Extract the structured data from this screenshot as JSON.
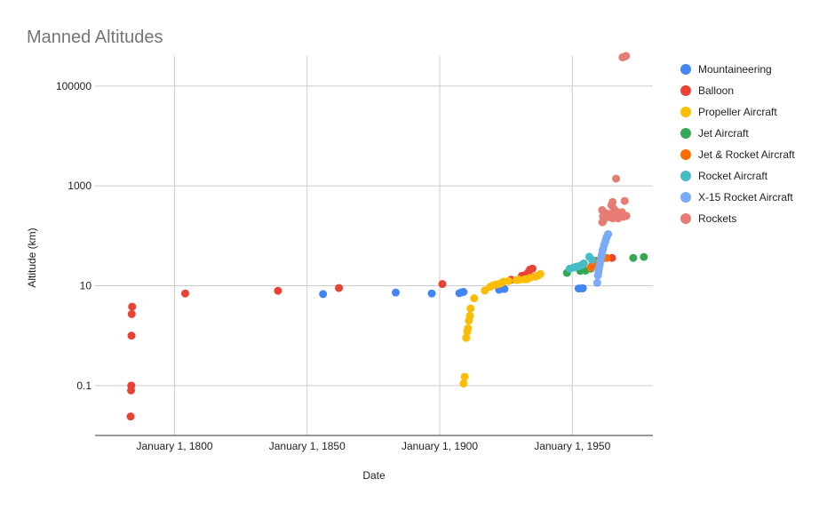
{
  "chart_data": {
    "type": "scatter",
    "title": "Manned Altitudes",
    "xlabel": "Date",
    "ylabel": "Altitude (km)",
    "x_axis": {
      "kind": "date",
      "range": [
        "1770-01-01",
        "1980-06-01"
      ],
      "ticks": [
        "1800-01-01",
        "1850-01-01",
        "1900-01-01",
        "1950-01-01"
      ],
      "tick_labels": [
        "January 1, 1800",
        "January 1, 1850",
        "January 1, 1900",
        "January 1, 1950"
      ]
    },
    "y_axis": {
      "scale": "log",
      "range": [
        0.01,
        400000
      ],
      "ticks": [
        0.1,
        10,
        1000,
        100000
      ],
      "tick_labels": [
        "0.1",
        "10",
        "1000",
        "100000"
      ]
    },
    "grid": true,
    "legend": "right",
    "series": [
      {
        "name": "Mountaineering",
        "color": "#4285F4",
        "points": [
          [
            "1856-01-01",
            6.8
          ],
          [
            "1883-06-01",
            7.3
          ],
          [
            "1897-01-01",
            7.0
          ],
          [
            "1907-06-01",
            7.1
          ],
          [
            "1908-06-01",
            7.4
          ],
          [
            "1909-01-01",
            7.5
          ],
          [
            "1922-06-01",
            8.3
          ],
          [
            "1924-06-01",
            8.6
          ],
          [
            "1952-06-01",
            8.8
          ],
          [
            "1953-05-29",
            8.85
          ],
          [
            "1954-01-01",
            8.9
          ]
        ]
      },
      {
        "name": "Balloon",
        "color": "#EA4335",
        "points": [
          [
            "1783-06-01",
            0.024
          ],
          [
            "1783-08-01",
            0.08
          ],
          [
            "1783-09-01",
            0.1
          ],
          [
            "1783-10-01",
            1.0
          ],
          [
            "1783-11-01",
            2.7
          ],
          [
            "1784-01-01",
            3.8
          ],
          [
            "1804-01-01",
            7.0
          ],
          [
            "1839-01-01",
            7.9
          ],
          [
            "1862-01-01",
            9.0
          ],
          [
            "1901-01-01",
            10.8
          ],
          [
            "1927-01-01",
            13.2
          ],
          [
            "1931-01-01",
            15.8
          ],
          [
            "1932-01-01",
            16.2
          ],
          [
            "1933-06-01",
            18.5
          ],
          [
            "1934-01-01",
            21.0
          ],
          [
            "1935-01-01",
            22.0
          ],
          [
            "1961-05-01",
            34.7
          ],
          [
            "1965-01-01",
            36.0
          ]
        ]
      },
      {
        "name": "Propeller Aircraft",
        "color": "#FBBC04",
        "points": [
          [
            "1909-01-01",
            0.11
          ],
          [
            "1909-06-01",
            0.15
          ],
          [
            "1910-01-01",
            0.9
          ],
          [
            "1910-06-01",
            1.2
          ],
          [
            "1910-09-01",
            1.4
          ],
          [
            "1911-01-01",
            2.0
          ],
          [
            "1911-06-01",
            2.5
          ],
          [
            "1911-09-01",
            3.5
          ],
          [
            "1913-01-01",
            5.6
          ],
          [
            "1917-01-01",
            8.0
          ],
          [
            "1919-01-01",
            9.5
          ],
          [
            "1920-01-01",
            10.1
          ],
          [
            "1921-01-01",
            10.5
          ],
          [
            "1922-01-01",
            10.7
          ],
          [
            "1923-01-01",
            11.1
          ],
          [
            "1924-01-01",
            12.0
          ],
          [
            "1926-01-01",
            12.4
          ],
          [
            "1929-01-01",
            13.0
          ],
          [
            "1930-01-01",
            13.2
          ],
          [
            "1932-01-01",
            13.4
          ],
          [
            "1933-01-01",
            13.6
          ],
          [
            "1934-01-01",
            14.4
          ],
          [
            "1936-01-01",
            15.2
          ],
          [
            "1937-01-01",
            15.9
          ],
          [
            "1938-01-01",
            17.1
          ]
        ]
      },
      {
        "name": "Jet Aircraft",
        "color": "#34A853",
        "points": [
          [
            "1948-01-01",
            18.1
          ],
          [
            "1953-01-01",
            19.8
          ],
          [
            "1955-01-01",
            20.0
          ],
          [
            "1957-01-01",
            22.0
          ],
          [
            "1958-01-01",
            27.8
          ],
          [
            "1959-01-01",
            31.5
          ],
          [
            "1973-01-01",
            36.0
          ],
          [
            "1977-01-01",
            37.7
          ]
        ]
      },
      {
        "name": "Jet & Rocket Aircraft",
        "color": "#FF6D01",
        "points": [
          [
            "1957-01-01",
            23.0
          ],
          [
            "1957-06-01",
            25.0
          ],
          [
            "1958-01-01",
            27.0
          ],
          [
            "1959-01-01",
            30.0
          ],
          [
            "1963-01-01",
            36.0
          ]
        ]
      },
      {
        "name": "Rocket Aircraft",
        "color": "#46BDC6",
        "points": [
          [
            "1949-01-01",
            21.9
          ],
          [
            "1950-06-01",
            23.0
          ],
          [
            "1951-06-01",
            24.0
          ],
          [
            "1952-06-01",
            24.5
          ],
          [
            "1953-06-01",
            25.5
          ],
          [
            "1954-01-01",
            27.0
          ],
          [
            "1954-06-01",
            28.0
          ],
          [
            "1956-06-01",
            38.0
          ],
          [
            "1957-06-01",
            33.0
          ]
        ]
      },
      {
        "name": "X-15 Rocket Aircraft",
        "color": "#7BAAF7",
        "points": [
          [
            "1959-06-01",
            11.4
          ],
          [
            "1959-09-01",
            16.0
          ],
          [
            "1959-12-01",
            19.0
          ],
          [
            "1960-01-01",
            22.0
          ],
          [
            "1960-03-01",
            24.0
          ],
          [
            "1960-06-01",
            27.0
          ],
          [
            "1960-09-01",
            32.0
          ],
          [
            "1961-01-01",
            38.0
          ],
          [
            "1961-03-01",
            42.0
          ],
          [
            "1961-06-01",
            50.0
          ],
          [
            "1961-09-01",
            55.0
          ],
          [
            "1962-01-01",
            65.0
          ],
          [
            "1962-06-01",
            75.0
          ],
          [
            "1962-09-01",
            85.0
          ],
          [
            "1963-01-01",
            95.0
          ],
          [
            "1963-06-01",
            106.0
          ],
          [
            "1963-08-01",
            107.8
          ]
        ]
      },
      {
        "name": "Rockets",
        "color": "#E67C73",
        "points": [
          [
            "1961-04-12",
            327
          ],
          [
            "1961-05-05",
            187
          ],
          [
            "1961-07-21",
            190
          ],
          [
            "1961-08-06",
            244
          ],
          [
            "1962-02-20",
            265
          ],
          [
            "1962-05-24",
            268
          ],
          [
            "1962-08-11",
            251
          ],
          [
            "1962-10-03",
            285
          ],
          [
            "1963-05-15",
            267
          ],
          [
            "1963-06-14",
            235
          ],
          [
            "1964-10-12",
            409
          ],
          [
            "1965-03-18",
            475
          ],
          [
            "1965-03-23",
            224
          ],
          [
            "1965-06-03",
            292
          ],
          [
            "1965-08-21",
            349
          ],
          [
            "1965-12-04",
            327
          ],
          [
            "1966-03-16",
            298
          ],
          [
            "1966-06-03",
            311
          ],
          [
            "1966-07-18",
            1400
          ],
          [
            "1966-09-12",
            300
          ],
          [
            "1966-11-11",
            301
          ],
          [
            "1967-04-23",
            223
          ],
          [
            "1968-10-11",
            297
          ],
          [
            "1968-12-21",
            377000
          ],
          [
            "1969-03-03",
            240
          ],
          [
            "1969-05-18",
            384000
          ],
          [
            "1969-07-16",
            384400
          ],
          [
            "1969-10-11",
            500
          ],
          [
            "1970-04-11",
            400000
          ],
          [
            "1970-06-01",
            250
          ]
        ]
      }
    ]
  }
}
